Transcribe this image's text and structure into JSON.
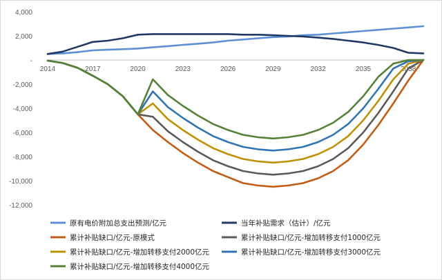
{
  "chart_data": {
    "type": "line",
    "title": "",
    "xlabel": "",
    "ylabel": "",
    "x": [
      2014,
      2015,
      2016,
      2017,
      2018,
      2019,
      2020,
      2021,
      2022,
      2023,
      2024,
      2025,
      2026,
      2027,
      2028,
      2029,
      2030,
      2031,
      2032,
      2033,
      2034,
      2035,
      2036,
      2037,
      2038,
      2039
    ],
    "x_ticks": [
      "2014",
      "2017",
      "2020",
      "2023",
      "2026",
      "2029",
      "2032",
      "2035",
      "2038"
    ],
    "ylim": [
      -12000,
      4000
    ],
    "y_ticks": [
      4000,
      2000,
      0,
      -2000,
      -4000,
      -6000,
      -8000,
      -10000,
      -12000
    ],
    "y_tick_labels": [
      "4,000",
      "2,000",
      "-",
      "-2,000",
      "-4,000",
      "-6,000",
      "-8,000",
      "-10,000",
      "-12,000"
    ],
    "grid": false,
    "legend_position": "bottom",
    "series": [
      {
        "name": "原有电价附加总支出预测/亿元",
        "color": "#5b8fd6",
        "values": [
          500,
          550,
          650,
          800,
          850,
          900,
          950,
          1050,
          1150,
          1250,
          1350,
          1450,
          1600,
          1700,
          1800,
          1900,
          1950,
          2050,
          2100,
          2200,
          2300,
          2400,
          2500,
          2600,
          2700,
          2800
        ]
      },
      {
        "name": "当年补贴需求（估计）/亿元",
        "color": "#1f3864",
        "values": [
          500,
          700,
          1100,
          1500,
          1600,
          1800,
          2100,
          2150,
          2150,
          2150,
          2150,
          2150,
          2150,
          2100,
          2100,
          2050,
          2000,
          1950,
          1850,
          1750,
          1600,
          1450,
          1250,
          1000,
          600,
          550
        ]
      },
      {
        "name": "累计补贴缺口/亿元-原模式",
        "color": "#c55a11",
        "values": [
          -50,
          -250,
          -650,
          -1300,
          -2000,
          -3000,
          -4500,
          -5800,
          -6800,
          -7700,
          -8500,
          -9200,
          -9700,
          -10200,
          -10400,
          -10500,
          -10400,
          -10200,
          -9800,
          -9200,
          -8300,
          -7000,
          -5400,
          -3600,
          -1700,
          0
        ]
      },
      {
        "name": "累计补贴缺口/亿元-增加转移支付1000亿元",
        "color": "#595959",
        "values": [
          -50,
          -250,
          -650,
          -1300,
          -2000,
          -3000,
          -4500,
          -4700,
          -5900,
          -6800,
          -7600,
          -8300,
          -8800,
          -9200,
          -9400,
          -9500,
          -9400,
          -9200,
          -8800,
          -8200,
          -7300,
          -6000,
          -4400,
          -2600,
          -700,
          0
        ]
      },
      {
        "name": "累计补贴缺口/亿元-增加转移支付2000亿元",
        "color": "#bf9000",
        "values": [
          -50,
          -250,
          -650,
          -1300,
          -2000,
          -3000,
          -4500,
          -3600,
          -4900,
          -5800,
          -6600,
          -7300,
          -7800,
          -8200,
          -8400,
          -8500,
          -8400,
          -8200,
          -7800,
          -7200,
          -6300,
          -5000,
          -3400,
          -1600,
          -300,
          0
        ]
      },
      {
        "name": "累计补贴缺口/亿元-增加转移支付3000亿元",
        "color": "#2e75b6",
        "values": [
          -50,
          -250,
          -650,
          -1300,
          -2000,
          -3000,
          -4500,
          -2600,
          -3900,
          -4800,
          -5600,
          -6300,
          -6800,
          -7200,
          -7400,
          -7500,
          -7400,
          -7200,
          -6800,
          -6200,
          -5300,
          -4000,
          -2400,
          -700,
          -100,
          0
        ]
      },
      {
        "name": "累计补贴缺口/亿元-增加转移支付4000亿元",
        "color": "#548235",
        "values": [
          -50,
          -250,
          -650,
          -1300,
          -2000,
          -3000,
          -4500,
          -1600,
          -2900,
          -3800,
          -4600,
          -5300,
          -5800,
          -6200,
          -6400,
          -6500,
          -6400,
          -6200,
          -5800,
          -5200,
          -4300,
          -3000,
          -1400,
          -300,
          0,
          0
        ]
      }
    ]
  }
}
